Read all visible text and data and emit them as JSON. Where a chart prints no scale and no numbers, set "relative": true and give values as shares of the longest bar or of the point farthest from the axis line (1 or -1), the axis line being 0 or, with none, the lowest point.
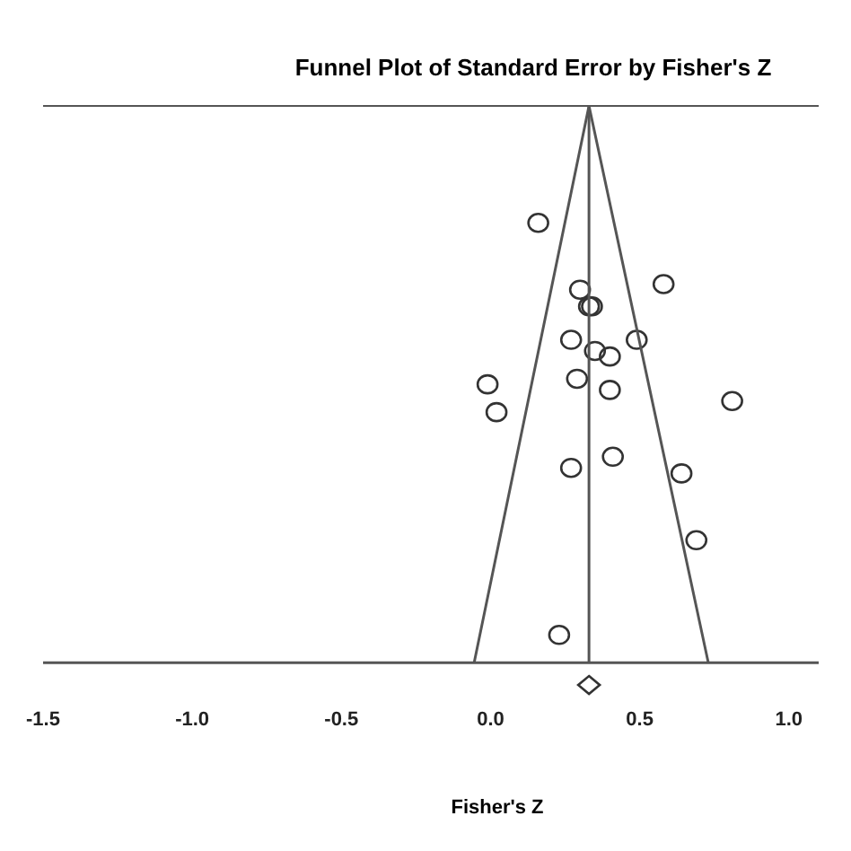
{
  "chart_data": {
    "type": "scatter",
    "title": "Funnel Plot of Standard Error by Fisher's Z",
    "xlabel": "Fisher's Z",
    "relative": true,
    "xlim": [
      -1.5,
      1.1
    ],
    "xticks": [
      {
        "value": -1.5,
        "label": "-1.5"
      },
      {
        "value": -1.0,
        "label": "-1.0"
      },
      {
        "value": -0.5,
        "label": "-0.5"
      },
      {
        "value": 0.0,
        "label": "0.0"
      },
      0.5,
      {
        "value": 1.0,
        "label": "1.0"
      }
    ],
    "grid": false,
    "legend": false,
    "series": [
      {
        "marker": "circle",
        "color": "#333333",
        "x": [
          0.16,
          0.3,
          0.58,
          0.33,
          0.34,
          0.27,
          0.49,
          0.35,
          0.4,
          -0.01,
          0.29,
          0.4,
          0.81,
          0.02,
          0.27,
          0.41,
          0.64,
          0.69,
          0.23
        ],
        "values": [
          0.79,
          0.67,
          0.68,
          0.64,
          0.64,
          0.58,
          0.58,
          0.56,
          0.55,
          0.5,
          0.51,
          0.49,
          0.47,
          0.45,
          0.35,
          0.37,
          0.34,
          0.22,
          0.05
        ]
      },
      {
        "marker": "diamond",
        "color": "#333333",
        "x": [
          0.33
        ],
        "values": [
          -0.04
        ]
      },
      {
        "type": "line",
        "color": "#555555",
        "x": [
          -0.055,
          0.33,
          0.73
        ],
        "values": [
          0,
          1,
          0
        ]
      },
      {
        "type": "line",
        "color": "#555555",
        "x": [
          0.33,
          0.33
        ],
        "values": [
          0,
          1
        ]
      }
    ]
  }
}
